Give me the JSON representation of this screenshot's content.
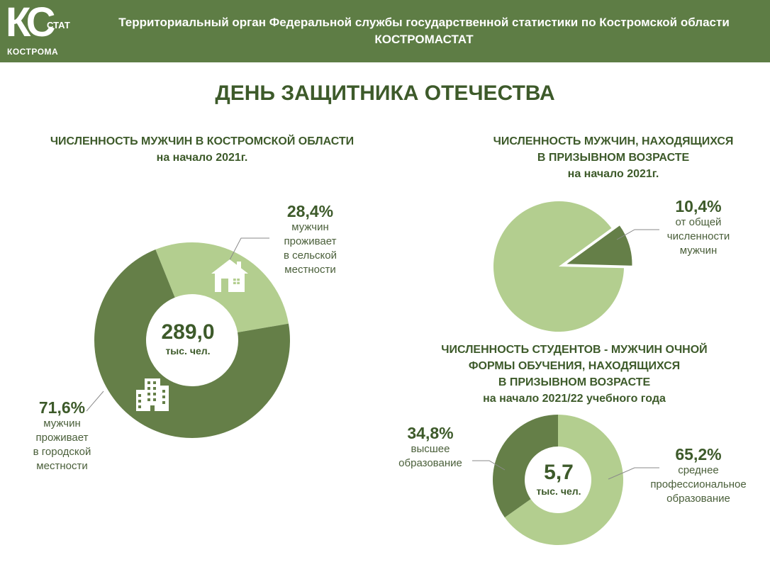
{
  "header": {
    "logo_letters": "КС",
    "logo_stat": "СТАТ",
    "logo_city": "КОСТРОМА",
    "line1": "Территориальный орган Федеральной службы государственной статистики по Костромской области",
    "line2": "КОСТРОМАСТАТ"
  },
  "main_title": "ДЕНЬ ЗАЩИТНИКА ОТЕЧЕСТВА",
  "colors": {
    "dark": "#657f48",
    "light": "#b3ce8f",
    "header": "#5e7d45",
    "text": "#3d5a2a"
  },
  "chart_data": [
    {
      "type": "pie",
      "title_line1": "ЧИСЛЕННОСТЬ МУЖЧИН В  КОСТРОМСКОЙ ОБЛАСТИ",
      "title_line2": "на начало 2021г.",
      "center_value": "289,0",
      "center_unit": "тыс. чел.",
      "slices": [
        {
          "label_pct": "28,4%",
          "value": 28.4,
          "desc1": "мужчин",
          "desc2": "проживает",
          "desc3": "в сельской",
          "desc4": "местности",
          "color": "light",
          "icon": "house-icon"
        },
        {
          "label_pct": "71,6%",
          "value": 71.6,
          "desc1": "мужчин",
          "desc2": "проживает",
          "desc3": "в городской",
          "desc4": "местности",
          "color": "dark",
          "icon": "building-icon"
        }
      ]
    },
    {
      "type": "pie",
      "title_line1": "ЧИСЛЕННОСТЬ  МУЖЧИН, НАХОДЯЩИХСЯ",
      "title_line2": "В ПРИЗЫВНОМ ВОЗРАСТЕ",
      "title_line3": "на начало 2021г.",
      "slices": [
        {
          "label_pct": "10,4%",
          "value": 10.4,
          "desc1": "от общей",
          "desc2": "численности",
          "desc3": "мужчин",
          "color": "dark"
        },
        {
          "value": 89.6,
          "color": "light"
        }
      ]
    },
    {
      "type": "pie",
      "title_line1": "ЧИСЛЕННОСТЬ СТУДЕНТОВ - МУЖЧИН ОЧНОЙ",
      "title_line2": "ФОРМЫ ОБУЧЕНИЯ, НАХОДЯЩИХСЯ",
      "title_line3": "В ПРИЗЫВНОМ ВОЗРАСТЕ",
      "title_line4": "на начало 2021/22 учебного года",
      "center_value": "5,7",
      "center_unit": "тыс. чел.",
      "slices": [
        {
          "label_pct": "65,2%",
          "value": 65.2,
          "desc1": "среднее",
          "desc2": "профессиональное",
          "desc3": "образование",
          "color": "light"
        },
        {
          "label_pct": "34,8%",
          "value": 34.8,
          "desc1": "высшее",
          "desc2": "образование",
          "color": "dark"
        }
      ]
    }
  ]
}
